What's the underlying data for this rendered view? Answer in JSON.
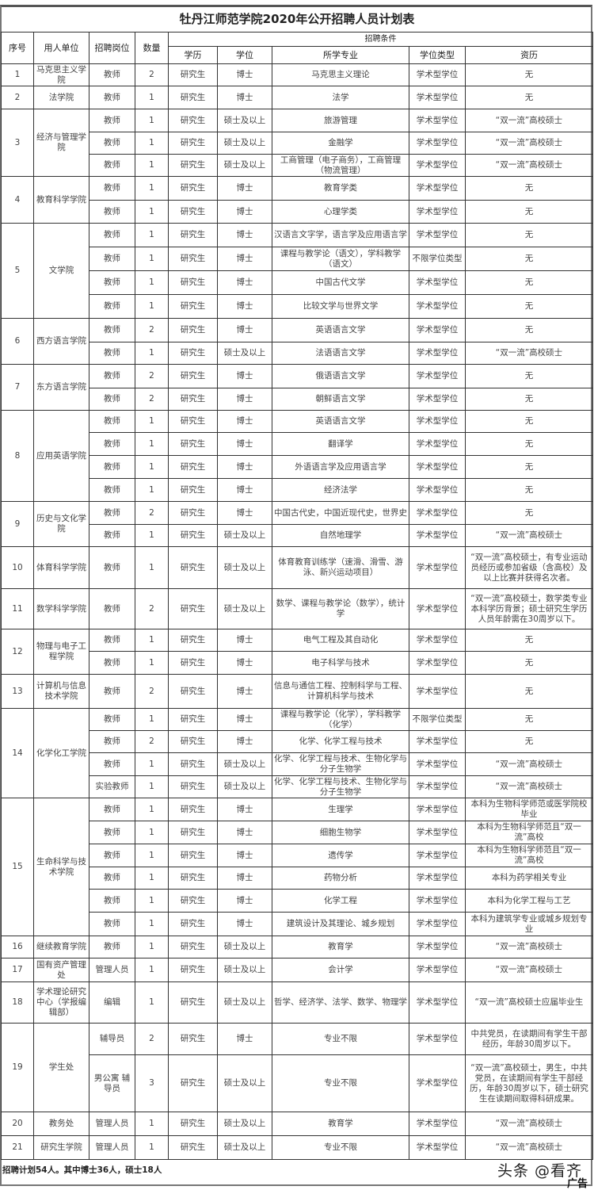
{
  "title": "牡丹江师范学院2020年公开招聘人员计划表",
  "headers": {
    "no": "序号",
    "unit": "用人单位",
    "post": "招聘岗位",
    "count": "数量",
    "conditions": "招聘条件",
    "education": "学历",
    "degree": "学位",
    "major": "所学专业",
    "degree_type": "学位类型",
    "qualification": "资历"
  },
  "units": [
    {
      "no": "1",
      "name": "马克思主义学院",
      "positions": [
        {
          "post": "教师",
          "count": "2",
          "edu": "研究生",
          "degree": "博士",
          "major": "马克思主义理论",
          "type": "学术型学位",
          "qual": "无"
        }
      ]
    },
    {
      "no": "2",
      "name": "法学院",
      "positions": [
        {
          "post": "教师",
          "count": "1",
          "edu": "研究生",
          "degree": "博士",
          "major": "法学",
          "type": "学术型学位",
          "qual": "无"
        }
      ]
    },
    {
      "no": "3",
      "name": "经济与管理学院",
      "positions": [
        {
          "post": "教师",
          "count": "1",
          "edu": "研究生",
          "degree": "硕士及以上",
          "major": "旅游管理",
          "type": "学术型学位",
          "qual": "“双一流”高校硕士"
        },
        {
          "post": "教师",
          "count": "1",
          "edu": "研究生",
          "degree": "硕士及以上",
          "major": "金融学",
          "type": "学术型学位",
          "qual": "“双一流”高校硕士"
        },
        {
          "post": "教师",
          "count": "1",
          "edu": "研究生",
          "degree": "硕士及以上",
          "major": "工商管理（电子商务），工商管理（物流管理）",
          "type": "学术型学位",
          "qual": "“双一流”高校硕士"
        }
      ]
    },
    {
      "no": "4",
      "name": "教育科学学院",
      "positions": [
        {
          "post": "教师",
          "count": "1",
          "edu": "研究生",
          "degree": "博士",
          "major": "教育学类",
          "type": "学术型学位",
          "qual": "无"
        },
        {
          "post": "教师",
          "count": "1",
          "edu": "研究生",
          "degree": "博士",
          "major": "心理学类",
          "type": "学术型学位",
          "qual": "无"
        }
      ]
    },
    {
      "no": "5",
      "name": "文学院",
      "positions": [
        {
          "post": "教师",
          "count": "1",
          "edu": "研究生",
          "degree": "博士",
          "major": "汉语言文字学，语言学及应用语言学",
          "type": "学术型学位",
          "qual": "无"
        },
        {
          "post": "教师",
          "count": "1",
          "edu": "研究生",
          "degree": "博士",
          "major": "课程与教学论（语文），学科教学（语文）",
          "type": "不限学位类型",
          "qual": "无"
        },
        {
          "post": "教师",
          "count": "1",
          "edu": "研究生",
          "degree": "博士",
          "major": "中国古代文学",
          "type": "学术型学位",
          "qual": "无"
        },
        {
          "post": "教师",
          "count": "1",
          "edu": "研究生",
          "degree": "博士",
          "major": "比较文学与世界文学",
          "type": "学术型学位",
          "qual": "无"
        }
      ]
    },
    {
      "no": "6",
      "name": "西方语言学院",
      "positions": [
        {
          "post": "教师",
          "count": "2",
          "edu": "研究生",
          "degree": "博士",
          "major": "英语语言文学",
          "type": "学术型学位",
          "qual": "无"
        },
        {
          "post": "教师",
          "count": "1",
          "edu": "研究生",
          "degree": "硕士及以上",
          "major": "法语语言文学",
          "type": "学术型学位",
          "qual": "“双一流”高校硕士"
        }
      ]
    },
    {
      "no": "7",
      "name": "东方语言学院",
      "positions": [
        {
          "post": "教师",
          "count": "2",
          "edu": "研究生",
          "degree": "博士",
          "major": "俄语语言文学",
          "type": "学术型学位",
          "qual": "无"
        },
        {
          "post": "教师",
          "count": "2",
          "edu": "研究生",
          "degree": "博士",
          "major": "朝鲜语言文学",
          "type": "学术型学位",
          "qual": "无"
        }
      ]
    },
    {
      "no": "8",
      "name": "应用英语学院",
      "positions": [
        {
          "post": "教师",
          "count": "1",
          "edu": "研究生",
          "degree": "博士",
          "major": "英语语言文学",
          "type": "学术型学位",
          "qual": "无"
        },
        {
          "post": "教师",
          "count": "1",
          "edu": "研究生",
          "degree": "博士",
          "major": "翻译学",
          "type": "学术型学位",
          "qual": "无"
        },
        {
          "post": "教师",
          "count": "1",
          "edu": "研究生",
          "degree": "博士",
          "major": "外语语言学及应用语言学",
          "type": "学术型学位",
          "qual": "无"
        },
        {
          "post": "教师",
          "count": "1",
          "edu": "研究生",
          "degree": "博士",
          "major": "经济法学",
          "type": "学术型学位",
          "qual": "无"
        }
      ]
    },
    {
      "no": "9",
      "name": "历史与文化学院",
      "positions": [
        {
          "post": "教师",
          "count": "2",
          "edu": "研究生",
          "degree": "博士",
          "major": "中国古代史，中国近现代史，世界史",
          "type": "学术型学位",
          "qual": "无"
        },
        {
          "post": "教师",
          "count": "1",
          "edu": "研究生",
          "degree": "硕士及以上",
          "major": "自然地理学",
          "type": "学术型学位",
          "qual": "“双一流”高校硕士"
        }
      ]
    },
    {
      "no": "10",
      "name": "体育科学学院",
      "positions": [
        {
          "post": "教师",
          "count": "1",
          "edu": "研究生",
          "degree": "硕士及以上",
          "major": "体育教育训练学（速滑、滑雪、游泳、新兴运动项目）",
          "type": "学术型学位",
          "qual": "“双一流”高校硕士，有专业运动员经历或参加省级（含高校）及以上比赛并获得名次者。"
        }
      ]
    },
    {
      "no": "11",
      "name": "数学科学学院",
      "positions": [
        {
          "post": "教师",
          "count": "2",
          "edu": "研究生",
          "degree": "硕士及以上",
          "major": "数学、课程与教学论（数学），统计学",
          "type": "学术型学位",
          "qual": "“双一流”高校硕士，数学类专业本科学历背景；硕士研究生学历人员年龄需在30周岁以下。"
        }
      ]
    },
    {
      "no": "12",
      "name": "物理与电子工程学院",
      "positions": [
        {
          "post": "教师",
          "count": "1",
          "edu": "研究生",
          "degree": "博士",
          "major": "电气工程及其自动化",
          "type": "学术型学位",
          "qual": "无"
        },
        {
          "post": "教师",
          "count": "1",
          "edu": "研究生",
          "degree": "博士",
          "major": "电子科学与技术",
          "type": "学术型学位",
          "qual": "无"
        }
      ]
    },
    {
      "no": "13",
      "name": "计算机与信息技术学院",
      "positions": [
        {
          "post": "教师",
          "count": "2",
          "edu": "研究生",
          "degree": "博士",
          "major": "信息与通信工程、控制科学与工程、计算机科学与技术",
          "type": "学术型学位",
          "qual": "无"
        }
      ]
    },
    {
      "no": "14",
      "name": "化学化工学院",
      "positions": [
        {
          "post": "教师",
          "count": "1",
          "edu": "研究生",
          "degree": "博士",
          "major": "课程与教学论（化学），学科教学（化学）",
          "type": "不限学位类型",
          "qual": "无"
        },
        {
          "post": "教师",
          "count": "2",
          "edu": "研究生",
          "degree": "博士",
          "major": "化学、化学工程与技术",
          "type": "学术型学位",
          "qual": "无"
        },
        {
          "post": "教师",
          "count": "1",
          "edu": "研究生",
          "degree": "硕士及以上",
          "major": "化学、化学工程与技术、生物化学与分子生物学",
          "type": "学术型学位",
          "qual": "“双一流”高校硕士"
        },
        {
          "post": "实验教师",
          "count": "1",
          "edu": "研究生",
          "degree": "硕士及以上",
          "major": "化学、化学工程与技术、生物化学与分子生物学",
          "type": "学术型学位",
          "qual": "“双一流”高校硕士"
        }
      ]
    },
    {
      "no": "15",
      "name": "生命科学与技术学院",
      "positions": [
        {
          "post": "教师",
          "count": "1",
          "edu": "研究生",
          "degree": "博士",
          "major": "生理学",
          "type": "学术型学位",
          "qual": "本科为生物科学师范或医学院校毕业"
        },
        {
          "post": "教师",
          "count": "1",
          "edu": "研究生",
          "degree": "博士",
          "major": "细胞生物学",
          "type": "学术型学位",
          "qual": "本科为生物科学师范且“双一流”高校"
        },
        {
          "post": "教师",
          "count": "1",
          "edu": "研究生",
          "degree": "博士",
          "major": "遗传学",
          "type": "学术型学位",
          "qual": "本科为生物科学师范且“双一流”高校"
        },
        {
          "post": "教师",
          "count": "1",
          "edu": "研究生",
          "degree": "博士",
          "major": "药物分析",
          "type": "学术型学位",
          "qual": "本科为药学相关专业"
        },
        {
          "post": "教师",
          "count": "1",
          "edu": "研究生",
          "degree": "博士",
          "major": "化学工程",
          "type": "学术型学位",
          "qual": "本科为化学工程与工艺"
        },
        {
          "post": "教师",
          "count": "1",
          "edu": "研究生",
          "degree": "博士",
          "major": "建筑设计及其理论、城乡规划",
          "type": "学术型学位",
          "qual": "本科为建筑学专业或城乡规划专业"
        }
      ]
    },
    {
      "no": "16",
      "name": "继续教育学院",
      "positions": [
        {
          "post": "教师",
          "count": "1",
          "edu": "研究生",
          "degree": "硕士及以上",
          "major": "教育学",
          "type": "学术型学位",
          "qual": "“双一流”高校硕士"
        }
      ]
    },
    {
      "no": "17",
      "name": "国有资产管理处",
      "positions": [
        {
          "post": "管理人员",
          "count": "1",
          "edu": "研究生",
          "degree": "硕士及以上",
          "major": "会计学",
          "type": "学术型学位",
          "qual": "“双一流”高校硕士"
        }
      ]
    },
    {
      "no": "18",
      "name": "学术理论研究中心（学报编辑部）",
      "positions": [
        {
          "post": "编辑",
          "count": "1",
          "edu": "研究生",
          "degree": "硕士及以上",
          "major": "哲学、经济学、法学、数学、物理学",
          "type": "学术型学位",
          "qual": "“双一流”高校硕士应届毕业生"
        }
      ]
    },
    {
      "no": "19",
      "name": "学生处",
      "positions": [
        {
          "post": "辅导员",
          "count": "2",
          "edu": "研究生",
          "degree": "博士",
          "major": "专业不限",
          "type": "学术型学位",
          "qual": "中共党员，在读期间有学生干部经历，年龄30周岁以下。"
        },
        {
          "post": "男公寓 辅导员",
          "count": "3",
          "edu": "研究生",
          "degree": "硕士及以上",
          "major": "专业不限",
          "type": "学术型学位",
          "qual": "“双一流”高校硕士，男生，中共党员，在读期间有学生干部经历，年龄30周岁以下，硕士研究生在读期间取得科研成果。"
        }
      ]
    },
    {
      "no": "20",
      "name": "教务处",
      "positions": [
        {
          "post": "管理人员",
          "count": "1",
          "edu": "研究生",
          "degree": "硕士及以上",
          "major": "教育学",
          "type": "学术型学位",
          "qual": "“双一流”高校硕士"
        }
      ]
    },
    {
      "no": "21",
      "name": "研究生学院",
      "positions": [
        {
          "post": "管理人员",
          "count": "1",
          "edu": "研究生",
          "degree": "硕士及以上",
          "major": "专业不限",
          "type": "学术型学位",
          "qual": "“双一流”高校硕士"
        }
      ]
    }
  ],
  "footer": "招聘计划54人。其中博士36人，硕士18人",
  "watermark": "头条 @看齐",
  "ad_label": "广告"
}
